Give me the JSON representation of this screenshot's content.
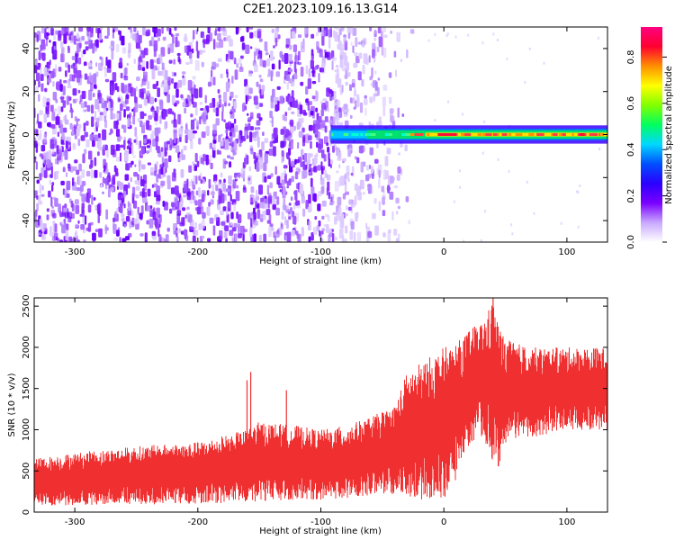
{
  "title": "C2E1.2023.109.16.13.G14",
  "chart_data": [
    {
      "type": "heatmap",
      "xlabel": "Height of straight line (km)",
      "ylabel": "Frequency (Hz)",
      "xlim": [
        -333,
        133
      ],
      "ylim": [
        -50,
        50
      ],
      "x_ticks": [
        -300,
        -200,
        -100,
        0,
        100
      ],
      "y_ticks": [
        -40,
        -20,
        0,
        20,
        40
      ],
      "grid": false,
      "colorbar": {
        "label": "Normalized spectral amplitude",
        "range": [
          0,
          0.93
        ],
        "ticks": [
          "0.0",
          "0.2",
          "0.4",
          "0.6",
          "0.8"
        ],
        "colors": [
          "#ffffff",
          "#c8a8ff",
          "#7a00ff",
          "#2a00ff",
          "#0050ff",
          "#00d8ff",
          "#00ff60",
          "#80ff00",
          "#ffff00",
          "#ff9000",
          "#ff0030",
          "#ff0080"
        ]
      },
      "features": {
        "noise_region_x": [
          -333,
          -25
        ],
        "noise_fade_x": [
          -90,
          -25
        ],
        "carrier_start_x": -92,
        "carrier_center_hz": 0,
        "carrier_halfwidth_hz": 2.5
      }
    },
    {
      "type": "area",
      "xlabel": "Height of straight line (km)",
      "ylabel": "SNR (10 * v/v)",
      "xlim": [
        -333,
        133
      ],
      "ylim": [
        0,
        2600
      ],
      "x_ticks": [
        -300,
        -200,
        -100,
        0,
        100
      ],
      "y_ticks": [
        0,
        500,
        1000,
        1500,
        2000,
        2500
      ],
      "grid": false,
      "color": "#f03030",
      "series": [
        {
          "x": [
            -333,
            -300,
            -250,
            -200,
            -160,
            -150,
            -120,
            -100,
            -80,
            -60,
            -40,
            -30,
            -20,
            -10,
            0,
            10,
            20,
            30,
            36,
            40,
            44,
            50,
            70,
            100,
            133
          ],
          "top": [
            650,
            720,
            800,
            850,
            1000,
            1100,
            1050,
            1000,
            1050,
            1150,
            1300,
            1700,
            1800,
            1900,
            2000,
            2050,
            2200,
            2300,
            2450,
            2600,
            2300,
            2100,
            2000,
            2000,
            2000
          ],
          "bottom": [
            60,
            80,
            90,
            100,
            120,
            130,
            150,
            150,
            170,
            200,
            200,
            180,
            150,
            100,
            150,
            400,
            800,
            900,
            800,
            600,
            500,
            800,
            900,
            1000,
            1000
          ]
        }
      ],
      "spikes": [
        {
          "x": -157,
          "y": 1700
        },
        {
          "x": -160,
          "y": 1600
        },
        {
          "x": -128,
          "y": 1480
        },
        {
          "x": 40,
          "y": 2600
        },
        {
          "x": 25,
          "y": 2250
        }
      ]
    }
  ]
}
